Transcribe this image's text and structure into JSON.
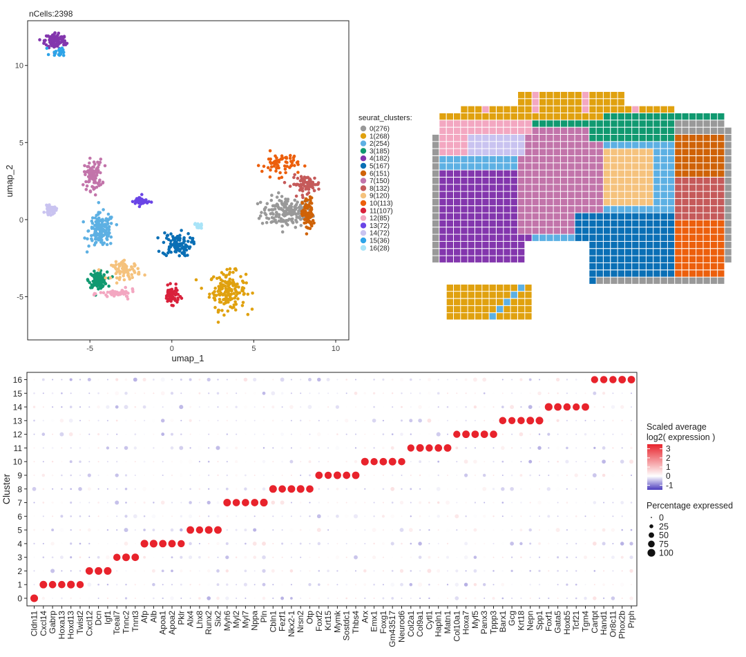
{
  "umap": {
    "title": "nCells:2398",
    "xlabel": "umap_1",
    "ylabel": "umap_2",
    "xticks": [
      -5,
      0,
      5,
      10
    ],
    "yticks": [
      -5,
      0,
      5,
      10
    ],
    "xlim": [
      -8.8,
      10.8
    ],
    "ylim": [
      -7.8,
      12.9
    ]
  },
  "legend": {
    "title": "seurat_clusters:",
    "items": [
      {
        "label": "0(276)",
        "color": "#999999"
      },
      {
        "label": "1(268)",
        "color": "#E0A10F"
      },
      {
        "label": "2(254)",
        "color": "#5DB0E3"
      },
      {
        "label": "3(185)",
        "color": "#109970"
      },
      {
        "label": "4(182)",
        "color": "#8336AD"
      },
      {
        "label": "5(167)",
        "color": "#0A6FB5"
      },
      {
        "label": "6(151)",
        "color": "#CF6207"
      },
      {
        "label": "7(150)",
        "color": "#C274AA"
      },
      {
        "label": "8(132)",
        "color": "#C55A5A"
      },
      {
        "label": "9(120)",
        "color": "#F5C27D"
      },
      {
        "label": "10(113)",
        "color": "#EC5F0C"
      },
      {
        "label": "11(107)",
        "color": "#D9213B"
      },
      {
        "label": "12(85)",
        "color": "#F3A7C1"
      },
      {
        "label": "13(72)",
        "color": "#6A45E6"
      },
      {
        "label": "14(72)",
        "color": "#C9C3F0"
      },
      {
        "label": "15(36)",
        "color": "#2EA4E8"
      },
      {
        "label": "16(28)",
        "color": "#A9E4F8"
      }
    ]
  },
  "chart_data": [
    {
      "type": "scatter",
      "title": "nCells:2398",
      "xlabel": "umap_1",
      "ylabel": "umap_2",
      "xlim": [
        -8.8,
        10.8
      ],
      "ylim": [
        -7.8,
        12.9
      ],
      "clusters": [
        {
          "cluster": "0",
          "center": [
            7.0,
            0.5
          ],
          "spread": [
            1.4,
            0.9
          ]
        },
        {
          "cluster": "1",
          "center": [
            3.4,
            -4.6
          ],
          "spread": [
            1.0,
            1.1
          ]
        },
        {
          "cluster": "2",
          "center": [
            -4.3,
            -0.7
          ],
          "spread": [
            0.7,
            1.0
          ]
        },
        {
          "cluster": "3",
          "center": [
            -4.5,
            -3.9
          ],
          "spread": [
            0.5,
            0.45
          ]
        },
        {
          "cluster": "4",
          "center": [
            -7.1,
            11.6
          ],
          "spread": [
            0.6,
            0.5
          ]
        },
        {
          "cluster": "5",
          "center": [
            0.3,
            -1.6
          ],
          "spread": [
            0.8,
            0.7
          ]
        },
        {
          "cluster": "6",
          "center": [
            8.3,
            0.3
          ],
          "spread": [
            0.3,
            1.0
          ]
        },
        {
          "cluster": "7",
          "center": [
            -4.8,
            2.9
          ],
          "spread": [
            0.5,
            0.9
          ]
        },
        {
          "cluster": "8",
          "center": [
            8.2,
            2.3
          ],
          "spread": [
            0.8,
            0.5
          ]
        },
        {
          "cluster": "9",
          "center": [
            -2.8,
            -3.3
          ],
          "spread": [
            0.8,
            0.5
          ]
        },
        {
          "cluster": "10",
          "center": [
            6.6,
            3.6
          ],
          "spread": [
            1.0,
            0.7
          ]
        },
        {
          "cluster": "11",
          "center": [
            0.0,
            -4.9
          ],
          "spread": [
            0.4,
            0.5
          ]
        },
        {
          "cluster": "12",
          "center": [
            -3.3,
            -4.8
          ],
          "spread": [
            1.0,
            0.25
          ]
        },
        {
          "cluster": "13",
          "center": [
            -1.9,
            1.2
          ],
          "spread": [
            0.4,
            0.3
          ]
        },
        {
          "cluster": "14",
          "center": [
            -7.4,
            0.6
          ],
          "spread": [
            0.3,
            0.25
          ]
        },
        {
          "cluster": "15",
          "center": [
            -6.8,
            10.9
          ],
          "spread": [
            0.5,
            0.3
          ]
        },
        {
          "cluster": "16",
          "center": [
            1.6,
            -0.4
          ],
          "spread": [
            0.2,
            0.15
          ]
        }
      ]
    },
    {
      "type": "heatmap",
      "description_of_panel": "spatial tissue map colored by seurat cluster",
      "regions": [
        {
          "cluster": "1",
          "area": "top border strip and detached bottom-left patch"
        },
        {
          "cluster": "12",
          "area": "upper-left band"
        },
        {
          "cluster": "14",
          "area": "upper-left inner region"
        },
        {
          "cluster": "2",
          "area": "left middle region"
        },
        {
          "cluster": "4",
          "area": "left lower large region"
        },
        {
          "cluster": "7",
          "area": "center region"
        },
        {
          "cluster": "3",
          "area": "upper-right band"
        },
        {
          "cluster": "9",
          "area": "center-right region"
        },
        {
          "cluster": "6",
          "area": "right upper region"
        },
        {
          "cluster": "8",
          "area": "right middle region"
        },
        {
          "cluster": "10",
          "area": "right lower region"
        },
        {
          "cluster": "5",
          "area": "lower-middle region"
        },
        {
          "cluster": "0",
          "area": "outer borders"
        }
      ]
    },
    {
      "type": "scatter",
      "subtype": "dotplot",
      "xlabel": "",
      "ylabel": "Cluster",
      "genes": [
        "Cldn11",
        "Cxcl14",
        "Gabrp",
        "Hoxa13",
        "Hoxd13",
        "Twist2",
        "Cxcl12",
        "Dcn",
        "Igf1",
        "Tceal7",
        "Tnnc2",
        "Tnnt3",
        "Afp",
        "Alb",
        "Apoa1",
        "Apoa2",
        "Pklr",
        "Alx4",
        "Lhx8",
        "Runx2",
        "Six2",
        "Myh6",
        "Myl2",
        "Myl7",
        "Nppa",
        "Pln",
        "Cbln1",
        "Fezf1",
        "Nkx2-1",
        "Nrsn2",
        "Otp",
        "Foxf2",
        "Krt15",
        "Mymk",
        "Sostdc1",
        "Thbs4",
        "Arx",
        "Emx1",
        "Foxg1",
        "Gm43517",
        "Neurod6",
        "Col2a1",
        "Col9a1",
        "Cytl1",
        "Hapln1",
        "Matn1",
        "Col10a1",
        "Hoxa7",
        "Myf5",
        "Panx3",
        "Tppp3",
        "Barx1",
        "Gcg",
        "Krt18",
        "Nepn",
        "Spp1",
        "Foxf1",
        "Gata5",
        "Hoxb5",
        "Tcf21",
        "Tgm4",
        "Cartpt",
        "Hand1",
        "Or8c11",
        "Phox2b",
        "Prph"
      ],
      "clusters": [
        "0",
        "1",
        "2",
        "3",
        "4",
        "5",
        "6",
        "7",
        "8",
        "9",
        "10",
        "11",
        "12",
        "13",
        "14",
        "15",
        "16"
      ],
      "marker_genes": {
        "0": [
          "Cldn11"
        ],
        "1": [
          "Cxcl14",
          "Gabrp",
          "Hoxa13",
          "Hoxd13",
          "Twist2"
        ],
        "2": [
          "Cxcl12",
          "Dcn",
          "Igf1"
        ],
        "3": [
          "Tceal7",
          "Tnnc2",
          "Tnnt3"
        ],
        "4": [
          "Afp",
          "Alb",
          "Apoa1",
          "Apoa2",
          "Pklr"
        ],
        "5": [
          "Alx4",
          "Lhx8",
          "Runx2",
          "Six2"
        ],
        "7": [
          "Myh6",
          "Myl2",
          "Myl7",
          "Nppa",
          "Pln"
        ],
        "8": [
          "Cbln1",
          "Fezf1",
          "Nkx2-1",
          "Nrsn2",
          "Otp"
        ],
        "9": [
          "Foxf2",
          "Krt15",
          "Mymk",
          "Sostdc1",
          "Thbs4"
        ],
        "10": [
          "Arx",
          "Emx1",
          "Foxg1",
          "Gm43517",
          "Neurod6"
        ],
        "11": [
          "Col2a1",
          "Col9a1",
          "Cytl1",
          "Hapln1",
          "Matn1"
        ],
        "12": [
          "Col10a1",
          "Hoxa7",
          "Myf5",
          "Panx3",
          "Tppp3"
        ],
        "13": [
          "Barx1",
          "Gcg",
          "Krt18",
          "Nepn",
          "Spp1"
        ],
        "14": [
          "Foxf1",
          "Gata5",
          "Hoxb5",
          "Tcf21",
          "Tgm4"
        ],
        "16": [
          "Cartpt",
          "Hand1",
          "Or8c11",
          "Phox2b",
          "Prph"
        ]
      },
      "color_legend": {
        "title_line1": "Scaled average",
        "title_line2": "log2( expression )",
        "ticks": [
          "3",
          "2",
          "1",
          "0",
          "-1"
        ],
        "range": [
          -1.5,
          3.5
        ]
      },
      "size_legend": {
        "title": "Percentage expressed",
        "values": [
          "0",
          "25",
          "50",
          "75",
          "100"
        ]
      }
    }
  ]
}
